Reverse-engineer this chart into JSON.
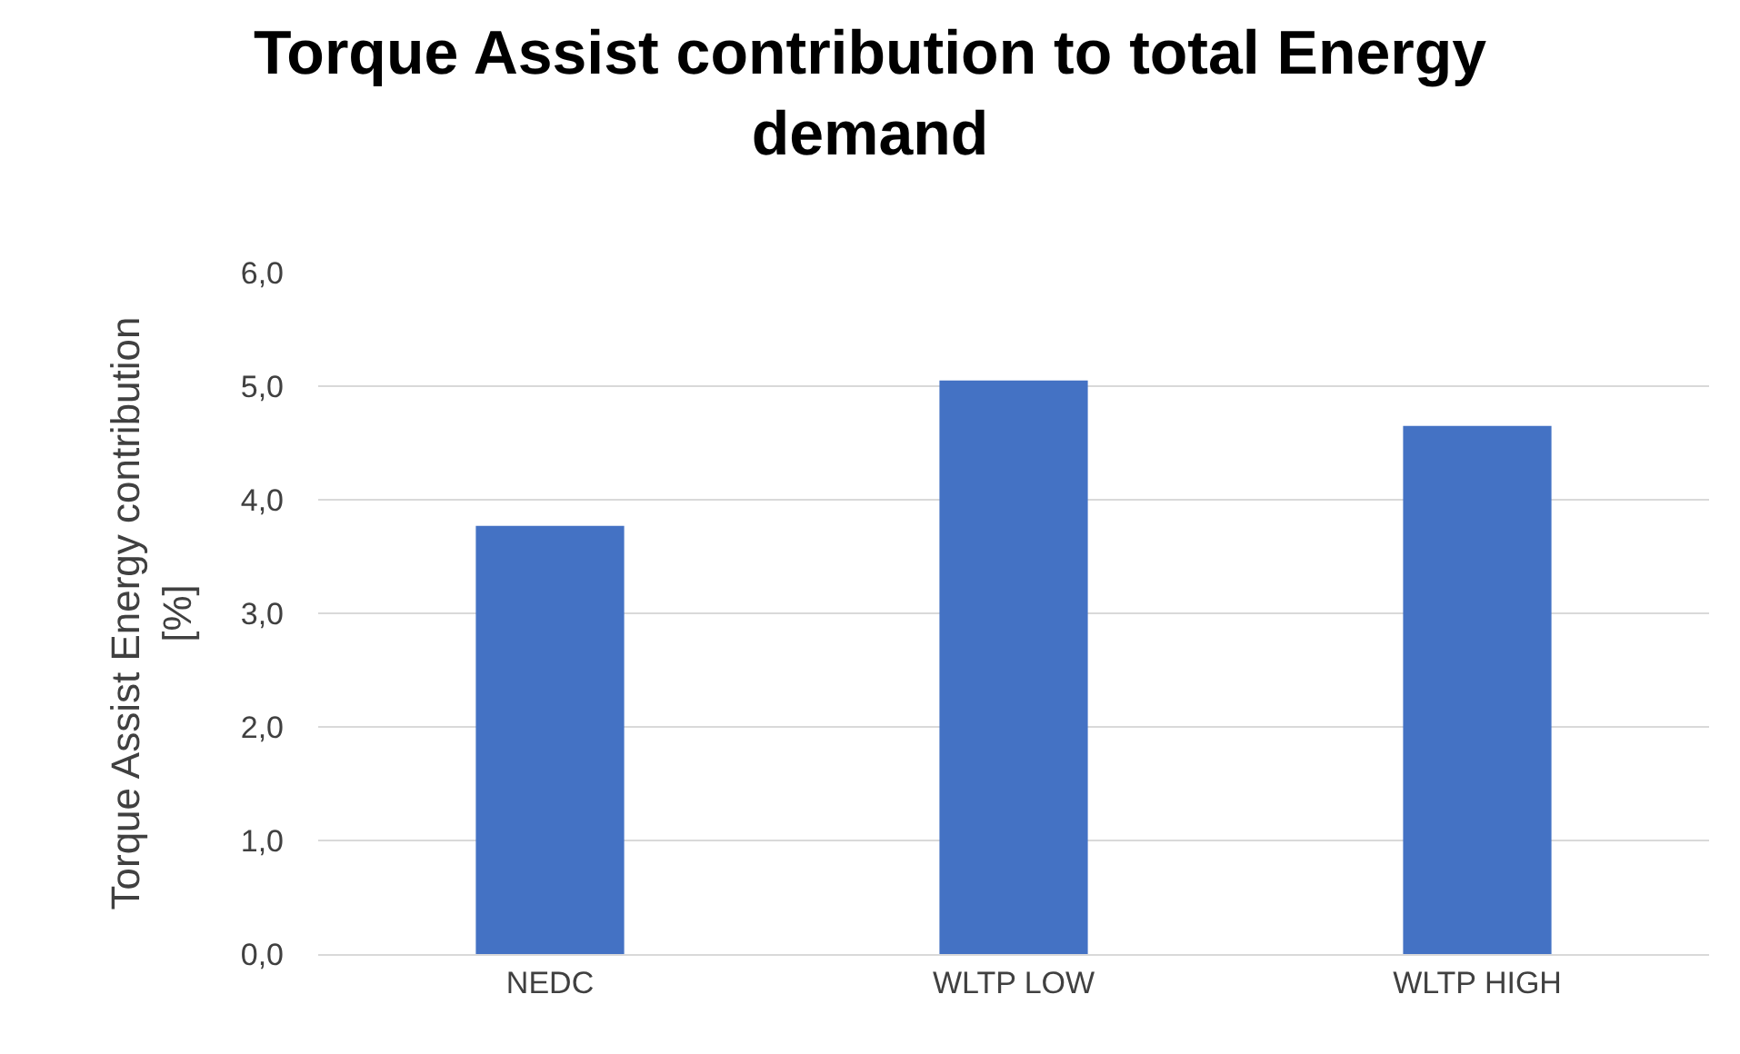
{
  "chart_data": {
    "type": "bar",
    "title": "Torque Assist contribution to total Energy\ndemand",
    "ylabel": "Torque Assist Energy contribution\n[%]",
    "categories": [
      "NEDC",
      "WLTP LOW",
      "WLTP HIGH"
    ],
    "values": [
      3.77,
      5.05,
      4.65
    ],
    "color": "#4472c4",
    "ylim": [
      0,
      6
    ],
    "yticks": [
      {
        "value": 0,
        "label": "0,0"
      },
      {
        "value": 1,
        "label": "1,0"
      },
      {
        "value": 2,
        "label": "2,0"
      },
      {
        "value": 3,
        "label": "3,0"
      },
      {
        "value": 4,
        "label": "4,0"
      },
      {
        "value": 5,
        "label": "5,0"
      },
      {
        "value": 6,
        "label": "6,0"
      }
    ],
    "grid": "y",
    "legend": false
  }
}
